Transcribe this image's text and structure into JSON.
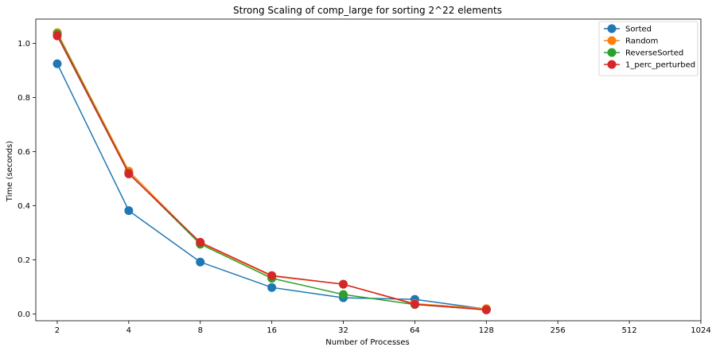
{
  "chart_data": {
    "type": "line",
    "title": "Strong Scaling of comp_large for sorting 2^22 elements",
    "xlabel": "Number of Processes",
    "ylabel": "Time (seconds)",
    "x_scale": "log2",
    "x_ticks": [
      2,
      4,
      8,
      16,
      32,
      64,
      128,
      256,
      512,
      1024
    ],
    "y_ticks": [
      0.0,
      0.2,
      0.4,
      0.6,
      0.8,
      1.0
    ],
    "ylim": [
      -0.025,
      1.09
    ],
    "grid": false,
    "legend_position": "top-right",
    "x": [
      2,
      4,
      8,
      16,
      32,
      64,
      128
    ],
    "series": [
      {
        "name": "Sorted",
        "color": "#1f77b4",
        "values": [
          0.925,
          0.382,
          0.192,
          0.098,
          0.06,
          0.054,
          0.018
        ]
      },
      {
        "name": "Random",
        "color": "#ff7f0e",
        "values": [
          1.04,
          0.528,
          0.262,
          0.14,
          0.11,
          0.038,
          0.02
        ]
      },
      {
        "name": "ReverseSorted",
        "color": "#2ca02c",
        "values": [
          1.035,
          0.52,
          0.258,
          0.132,
          0.072,
          0.035,
          0.016
        ]
      },
      {
        "name": "1_perc_perturbed",
        "color": "#d62728",
        "values": [
          1.028,
          0.518,
          0.265,
          0.142,
          0.11,
          0.036,
          0.015
        ]
      }
    ]
  }
}
